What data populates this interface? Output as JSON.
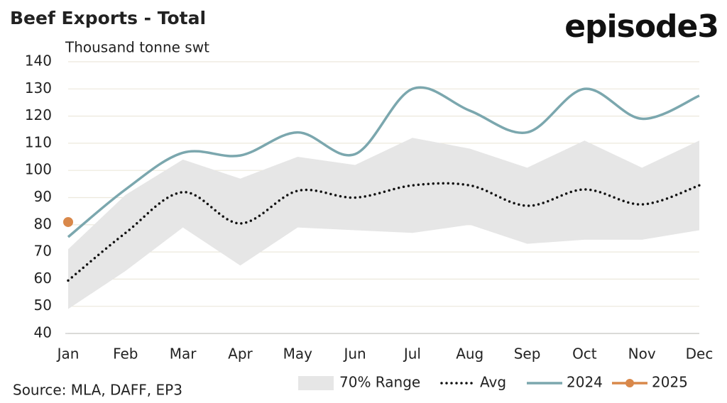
{
  "chart_data": {
    "type": "line",
    "title": "Beef Exports - Total",
    "logo": "episode3",
    "y_label": "Thousand tonne swt",
    "source": "Source: MLA, DAFF, EP3",
    "categories": [
      "Jan",
      "Feb",
      "Mar",
      "Apr",
      "May",
      "Jun",
      "Jul",
      "Aug",
      "Sep",
      "Oct",
      "Nov",
      "Dec"
    ],
    "ylim": [
      40,
      140
    ],
    "yticks": [
      40,
      50,
      60,
      70,
      80,
      90,
      100,
      110,
      120,
      130,
      140
    ],
    "grid": true,
    "legend": "bottom",
    "series": [
      {
        "name": "70% Range",
        "type": "band",
        "color": "#e6e6e6",
        "values": [
          71,
          91,
          104,
          97,
          105,
          102,
          112,
          108,
          101,
          111,
          101,
          111
        ],
        "low": [
          49,
          63,
          79,
          65,
          79,
          78,
          77,
          80,
          73,
          74.5,
          74.5,
          78
        ]
      },
      {
        "name": "Avg",
        "type": "dotted",
        "color": "#111111",
        "values": [
          59.5,
          77,
          92,
          80.5,
          92.5,
          90,
          94.5,
          94.5,
          87,
          93,
          87.5,
          94.5
        ]
      },
      {
        "name": "2024",
        "type": "line",
        "color": "#7ba7ae",
        "values": [
          75.5,
          93,
          106.5,
          105.5,
          114,
          106,
          130,
          122,
          114,
          130,
          119,
          127.5
        ]
      },
      {
        "name": "2025",
        "type": "marker-line",
        "color": "#d9884a",
        "values": [
          81,
          null,
          null,
          null,
          null,
          null,
          null,
          null,
          null,
          null,
          null,
          null
        ]
      }
    ]
  }
}
